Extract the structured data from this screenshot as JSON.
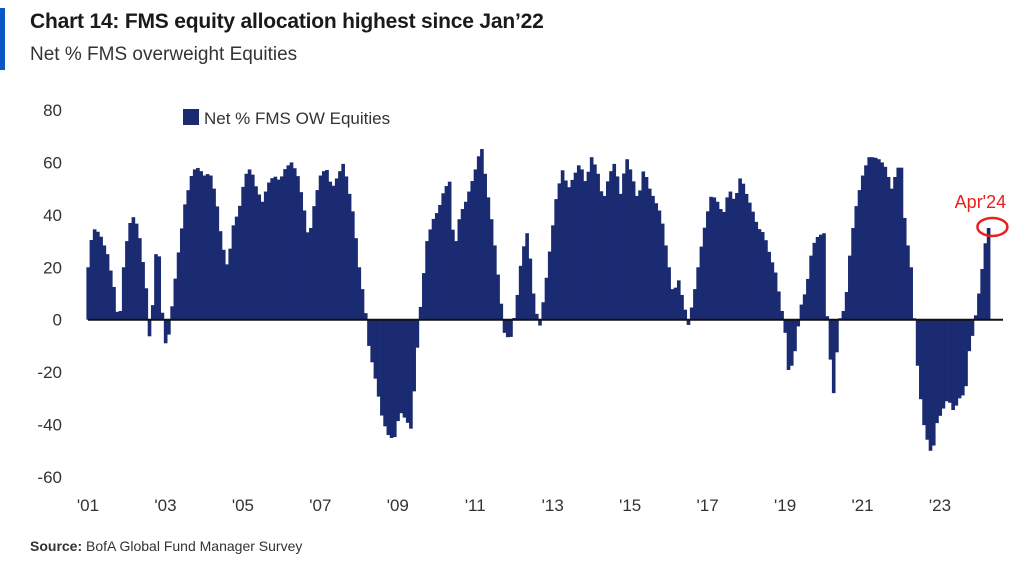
{
  "header": {
    "title": "Chart 14: FMS equity allocation highest since Jan’22",
    "subtitle": "Net % FMS overweight Equities"
  },
  "footer": {
    "source_label": "Source:",
    "source_text": "BofA Global Fund Manager Survey"
  },
  "colors": {
    "bar": "#1a2b72",
    "accent": "#0a58c8",
    "annotation": "#e8201e"
  },
  "chart_data": {
    "type": "bar",
    "title": "Chart 14: FMS equity allocation highest since Jan’22",
    "subtitle": "Net % FMS overweight Equities",
    "legend": [
      "Net % FMS OW Equities"
    ],
    "legend_position": "top-left",
    "ylim": [
      -60,
      80
    ],
    "y_ticks": [
      "80",
      "60",
      "40",
      "20",
      "0",
      "-20",
      "-40",
      "-60"
    ],
    "x_ticks": [
      "'01",
      "'03",
      "'05",
      "'07",
      "'09",
      "'11",
      "'13",
      "'15",
      "'17",
      "'19",
      "'21",
      "'23"
    ],
    "start_year": 2001,
    "annotation": {
      "label": "Apr'24",
      "year": 2024.25,
      "value": 35
    },
    "series": [
      {
        "name": "Net % FMS OW Equities",
        "keyframes": [
          [
            2001.0,
            20
          ],
          [
            2001.12,
            35
          ],
          [
            2001.3,
            33
          ],
          [
            2001.5,
            25
          ],
          [
            2001.7,
            10
          ],
          [
            2001.8,
            -4
          ],
          [
            2001.9,
            18
          ],
          [
            2002.05,
            36
          ],
          [
            2002.2,
            40
          ],
          [
            2002.35,
            30
          ],
          [
            2002.5,
            12
          ],
          [
            2002.6,
            -10
          ],
          [
            2002.75,
            25
          ],
          [
            2002.85,
            24
          ],
          [
            2002.95,
            -8
          ],
          [
            2003.05,
            -10
          ],
          [
            2003.15,
            3
          ],
          [
            2003.3,
            22
          ],
          [
            2003.5,
            44
          ],
          [
            2003.7,
            57
          ],
          [
            2003.85,
            58
          ],
          [
            2004.0,
            55
          ],
          [
            2004.15,
            56
          ],
          [
            2004.3,
            47
          ],
          [
            2004.45,
            30
          ],
          [
            2004.6,
            20
          ],
          [
            2004.75,
            36
          ],
          [
            2004.9,
            42
          ],
          [
            2005.05,
            55
          ],
          [
            2005.2,
            58
          ],
          [
            2005.35,
            50
          ],
          [
            2005.5,
            45
          ],
          [
            2005.65,
            52
          ],
          [
            2005.8,
            55
          ],
          [
            2005.95,
            53
          ],
          [
            2006.1,
            58
          ],
          [
            2006.25,
            60
          ],
          [
            2006.4,
            56
          ],
          [
            2006.55,
            45
          ],
          [
            2006.7,
            30
          ],
          [
            2006.85,
            45
          ],
          [
            2007.0,
            55
          ],
          [
            2007.15,
            58
          ],
          [
            2007.3,
            50
          ],
          [
            2007.45,
            55
          ],
          [
            2007.6,
            60
          ],
          [
            2007.7,
            52
          ],
          [
            2007.85,
            40
          ],
          [
            2008.0,
            20
          ],
          [
            2008.15,
            5
          ],
          [
            2008.25,
            -10
          ],
          [
            2008.45,
            -25
          ],
          [
            2008.6,
            -38
          ],
          [
            2008.75,
            -44
          ],
          [
            2008.9,
            -46
          ],
          [
            2009.05,
            -35
          ],
          [
            2009.2,
            -38
          ],
          [
            2009.35,
            -42
          ],
          [
            2009.45,
            -20
          ],
          [
            2009.6,
            8
          ],
          [
            2009.75,
            30
          ],
          [
            2009.9,
            38
          ],
          [
            2010.05,
            42
          ],
          [
            2010.2,
            50
          ],
          [
            2010.35,
            53
          ],
          [
            2010.45,
            25
          ],
          [
            2010.6,
            40
          ],
          [
            2010.75,
            45
          ],
          [
            2010.9,
            52
          ],
          [
            2011.05,
            60
          ],
          [
            2011.15,
            67
          ],
          [
            2011.3,
            50
          ],
          [
            2011.45,
            35
          ],
          [
            2011.6,
            15
          ],
          [
            2011.75,
            -5
          ],
          [
            2011.9,
            -8
          ],
          [
            2012.05,
            5
          ],
          [
            2012.2,
            25
          ],
          [
            2012.35,
            34
          ],
          [
            2012.5,
            10
          ],
          [
            2012.65,
            -4
          ],
          [
            2012.8,
            12
          ],
          [
            2012.95,
            30
          ],
          [
            2013.1,
            48
          ],
          [
            2013.25,
            57
          ],
          [
            2013.4,
            50
          ],
          [
            2013.55,
            55
          ],
          [
            2013.7,
            60
          ],
          [
            2013.85,
            52
          ],
          [
            2014.0,
            62
          ],
          [
            2014.15,
            57
          ],
          [
            2014.3,
            45
          ],
          [
            2014.45,
            55
          ],
          [
            2014.6,
            60
          ],
          [
            2014.75,
            48
          ],
          [
            2014.9,
            62
          ],
          [
            2015.05,
            55
          ],
          [
            2015.2,
            45
          ],
          [
            2015.35,
            58
          ],
          [
            2015.5,
            50
          ],
          [
            2015.65,
            45
          ],
          [
            2015.8,
            40
          ],
          [
            2015.95,
            25
          ],
          [
            2016.1,
            10
          ],
          [
            2016.25,
            15
          ],
          [
            2016.4,
            5
          ],
          [
            2016.5,
            -2
          ],
          [
            2016.65,
            10
          ],
          [
            2016.8,
            25
          ],
          [
            2016.95,
            38
          ],
          [
            2017.1,
            48
          ],
          [
            2017.25,
            45
          ],
          [
            2017.4,
            40
          ],
          [
            2017.55,
            50
          ],
          [
            2017.7,
            45
          ],
          [
            2017.85,
            55
          ],
          [
            2018.0,
            48
          ],
          [
            2018.15,
            42
          ],
          [
            2018.3,
            35
          ],
          [
            2018.45,
            33
          ],
          [
            2018.6,
            25
          ],
          [
            2018.75,
            18
          ],
          [
            2018.9,
            5
          ],
          [
            2019.0,
            -5
          ],
          [
            2019.1,
            -22
          ],
          [
            2019.25,
            -12
          ],
          [
            2019.4,
            5
          ],
          [
            2019.55,
            12
          ],
          [
            2019.7,
            28
          ],
          [
            2019.85,
            32
          ],
          [
            2020.0,
            33
          ],
          [
            2020.1,
            -5
          ],
          [
            2020.25,
            -28
          ],
          [
            2020.4,
            0
          ],
          [
            2020.55,
            5
          ],
          [
            2020.7,
            30
          ],
          [
            2020.85,
            45
          ],
          [
            2021.0,
            55
          ],
          [
            2021.15,
            62
          ],
          [
            2021.3,
            62
          ],
          [
            2021.45,
            61
          ],
          [
            2021.6,
            58
          ],
          [
            2021.75,
            50
          ],
          [
            2021.9,
            58
          ],
          [
            2022.0,
            58
          ],
          [
            2022.1,
            35
          ],
          [
            2022.25,
            20
          ],
          [
            2022.4,
            -15
          ],
          [
            2022.55,
            -38
          ],
          [
            2022.7,
            -48
          ],
          [
            2022.8,
            -52
          ],
          [
            2022.9,
            -40
          ],
          [
            2023.05,
            -35
          ],
          [
            2023.2,
            -30
          ],
          [
            2023.35,
            -35
          ],
          [
            2023.5,
            -30
          ],
          [
            2023.65,
            -28
          ],
          [
            2023.75,
            -12
          ],
          [
            2023.85,
            -5
          ],
          [
            2023.95,
            5
          ],
          [
            2024.05,
            15
          ],
          [
            2024.15,
            28
          ],
          [
            2024.25,
            35
          ]
        ]
      }
    ]
  }
}
